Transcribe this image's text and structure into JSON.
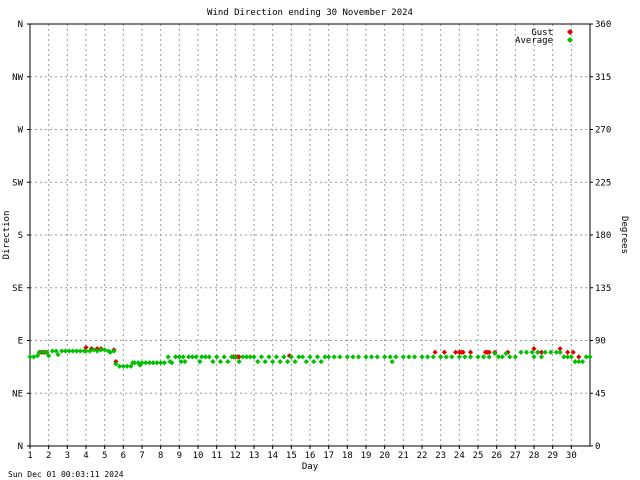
{
  "chart_data": {
    "type": "scatter",
    "title": "Wind Direction ending 30 November 2024",
    "xlabel": "Day",
    "ylabel_left": "Direction",
    "ylabel_right": "Degrees",
    "xlim": [
      1,
      31
    ],
    "ylim": [
      0,
      360
    ],
    "grid": true,
    "legend_position": "top-right",
    "x_ticks": [
      "1",
      "2",
      "3",
      "4",
      "5",
      "6",
      "7",
      "8",
      "9",
      "10",
      "11",
      "12",
      "13",
      "14",
      "15",
      "16",
      "17",
      "18",
      "19",
      "20",
      "21",
      "22",
      "23",
      "24",
      "25",
      "26",
      "27",
      "28",
      "29",
      "30"
    ],
    "y_ticks_left": [
      {
        "value": 0,
        "label": "N"
      },
      {
        "value": 45,
        "label": "NE"
      },
      {
        "value": 90,
        "label": "E"
      },
      {
        "value": 135,
        "label": "SE"
      },
      {
        "value": 180,
        "label": "S"
      },
      {
        "value": 225,
        "label": "SW"
      },
      {
        "value": 270,
        "label": "W"
      },
      {
        "value": 315,
        "label": "NW"
      },
      {
        "value": 360,
        "label": "N"
      }
    ],
    "y_ticks_right": [
      {
        "value": 0,
        "label": "0"
      },
      {
        "value": 45,
        "label": "45"
      },
      {
        "value": 90,
        "label": "90"
      },
      {
        "value": 135,
        "label": "135"
      },
      {
        "value": 180,
        "label": "180"
      },
      {
        "value": 225,
        "label": "225"
      },
      {
        "value": 270,
        "label": "270"
      },
      {
        "value": 315,
        "label": "315"
      },
      {
        "value": 360,
        "label": "360"
      }
    ],
    "series": [
      {
        "name": "Average",
        "color": "#00c000",
        "points": [
          [
            1.0,
            76
          ],
          [
            1.2,
            76
          ],
          [
            1.4,
            77
          ],
          [
            1.5,
            80
          ],
          [
            1.7,
            80
          ],
          [
            1.9,
            80
          ],
          [
            2.0,
            77
          ],
          [
            2.2,
            81
          ],
          [
            2.4,
            81
          ],
          [
            2.5,
            78
          ],
          [
            2.7,
            81
          ],
          [
            2.9,
            81
          ],
          [
            3.1,
            81
          ],
          [
            3.3,
            81
          ],
          [
            3.5,
            81
          ],
          [
            3.7,
            81
          ],
          [
            3.9,
            81
          ],
          [
            4.0,
            81
          ],
          [
            4.2,
            81
          ],
          [
            4.4,
            82
          ],
          [
            4.6,
            81
          ],
          [
            4.8,
            82
          ],
          [
            5.0,
            82
          ],
          [
            5.2,
            81
          ],
          [
            5.3,
            80
          ],
          [
            5.5,
            81
          ],
          [
            5.6,
            70
          ],
          [
            5.8,
            68
          ],
          [
            6.0,
            68
          ],
          [
            6.2,
            68
          ],
          [
            6.4,
            68
          ],
          [
            6.5,
            71
          ],
          [
            6.6,
            71
          ],
          [
            6.8,
            71
          ],
          [
            6.9,
            69
          ],
          [
            7.0,
            71
          ],
          [
            7.2,
            71
          ],
          [
            7.4,
            71
          ],
          [
            7.6,
            71
          ],
          [
            7.8,
            71
          ],
          [
            8.0,
            71
          ],
          [
            8.2,
            71
          ],
          [
            8.4,
            76
          ],
          [
            8.5,
            72
          ],
          [
            8.6,
            71
          ],
          [
            8.8,
            76
          ],
          [
            9.0,
            76
          ],
          [
            9.1,
            72
          ],
          [
            9.2,
            76
          ],
          [
            9.3,
            72
          ],
          [
            9.5,
            76
          ],
          [
            9.7,
            76
          ],
          [
            9.9,
            76
          ],
          [
            10.1,
            72
          ],
          [
            10.2,
            76
          ],
          [
            10.4,
            76
          ],
          [
            10.6,
            76
          ],
          [
            10.8,
            72
          ],
          [
            11.0,
            76
          ],
          [
            11.2,
            72
          ],
          [
            11.4,
            76
          ],
          [
            11.6,
            72
          ],
          [
            11.8,
            76
          ],
          [
            12.0,
            76
          ],
          [
            12.2,
            72
          ],
          [
            12.4,
            76
          ],
          [
            12.6,
            76
          ],
          [
            12.8,
            76
          ],
          [
            13.0,
            76
          ],
          [
            13.2,
            72
          ],
          [
            13.4,
            76
          ],
          [
            13.6,
            72
          ],
          [
            13.8,
            76
          ],
          [
            14.0,
            72
          ],
          [
            14.2,
            76
          ],
          [
            14.4,
            72
          ],
          [
            14.6,
            76
          ],
          [
            14.8,
            72
          ],
          [
            15.0,
            76
          ],
          [
            15.2,
            72
          ],
          [
            15.4,
            76
          ],
          [
            15.6,
            76
          ],
          [
            15.8,
            72
          ],
          [
            16.0,
            76
          ],
          [
            16.2,
            72
          ],
          [
            16.4,
            76
          ],
          [
            16.6,
            72
          ],
          [
            16.8,
            76
          ],
          [
            17.0,
            76
          ],
          [
            17.3,
            76
          ],
          [
            17.6,
            76
          ],
          [
            18.0,
            76
          ],
          [
            18.3,
            76
          ],
          [
            18.6,
            76
          ],
          [
            19.0,
            76
          ],
          [
            19.3,
            76
          ],
          [
            19.6,
            76
          ],
          [
            20.0,
            76
          ],
          [
            20.3,
            76
          ],
          [
            20.4,
            72
          ],
          [
            20.6,
            76
          ],
          [
            21.0,
            76
          ],
          [
            21.3,
            76
          ],
          [
            21.6,
            76
          ],
          [
            22.0,
            76
          ],
          [
            22.3,
            76
          ],
          [
            22.6,
            76
          ],
          [
            23.0,
            76
          ],
          [
            23.3,
            76
          ],
          [
            23.6,
            76
          ],
          [
            24.0,
            76
          ],
          [
            24.3,
            76
          ],
          [
            24.6,
            76
          ],
          [
            25.0,
            76
          ],
          [
            25.3,
            76
          ],
          [
            25.6,
            76
          ],
          [
            25.9,
            79
          ],
          [
            26.1,
            76
          ],
          [
            26.3,
            76
          ],
          [
            26.5,
            79
          ],
          [
            26.7,
            76
          ],
          [
            27.0,
            76
          ],
          [
            27.3,
            80
          ],
          [
            27.6,
            80
          ],
          [
            27.9,
            80
          ],
          [
            28.0,
            76
          ],
          [
            28.2,
            80
          ],
          [
            28.4,
            76
          ],
          [
            28.6,
            80
          ],
          [
            28.9,
            80
          ],
          [
            29.2,
            80
          ],
          [
            29.4,
            80
          ],
          [
            29.6,
            76
          ],
          [
            29.8,
            76
          ],
          [
            30.0,
            76
          ],
          [
            30.2,
            72
          ],
          [
            30.4,
            72
          ],
          [
            30.6,
            72
          ],
          [
            30.8,
            76
          ],
          [
            31.0,
            76
          ]
        ]
      },
      {
        "name": "Gust",
        "color": "#e00000",
        "points": [
          [
            1.5,
            80
          ],
          [
            1.6,
            80
          ],
          [
            1.7,
            80
          ],
          [
            1.8,
            80
          ],
          [
            1.9,
            80
          ],
          [
            4.0,
            84
          ],
          [
            4.3,
            83
          ],
          [
            4.6,
            83
          ],
          [
            4.8,
            83
          ],
          [
            5.5,
            82
          ],
          [
            5.6,
            72
          ],
          [
            11.9,
            76
          ],
          [
            12.0,
            76
          ],
          [
            12.1,
            76
          ],
          [
            12.2,
            76
          ],
          [
            14.9,
            77
          ],
          [
            22.7,
            80
          ],
          [
            23.2,
            80
          ],
          [
            23.8,
            80
          ],
          [
            24.0,
            80
          ],
          [
            24.1,
            80
          ],
          [
            24.2,
            80
          ],
          [
            24.6,
            80
          ],
          [
            25.4,
            80
          ],
          [
            25.5,
            80
          ],
          [
            25.6,
            80
          ],
          [
            25.9,
            80
          ],
          [
            26.6,
            80
          ],
          [
            28.0,
            83
          ],
          [
            28.2,
            80
          ],
          [
            28.4,
            80
          ],
          [
            29.4,
            83
          ],
          [
            29.8,
            80
          ],
          [
            30.1,
            80
          ],
          [
            30.4,
            76
          ]
        ]
      }
    ]
  },
  "footer": {
    "timestamp": "Sun Dec 01 00:03:11 2024"
  }
}
